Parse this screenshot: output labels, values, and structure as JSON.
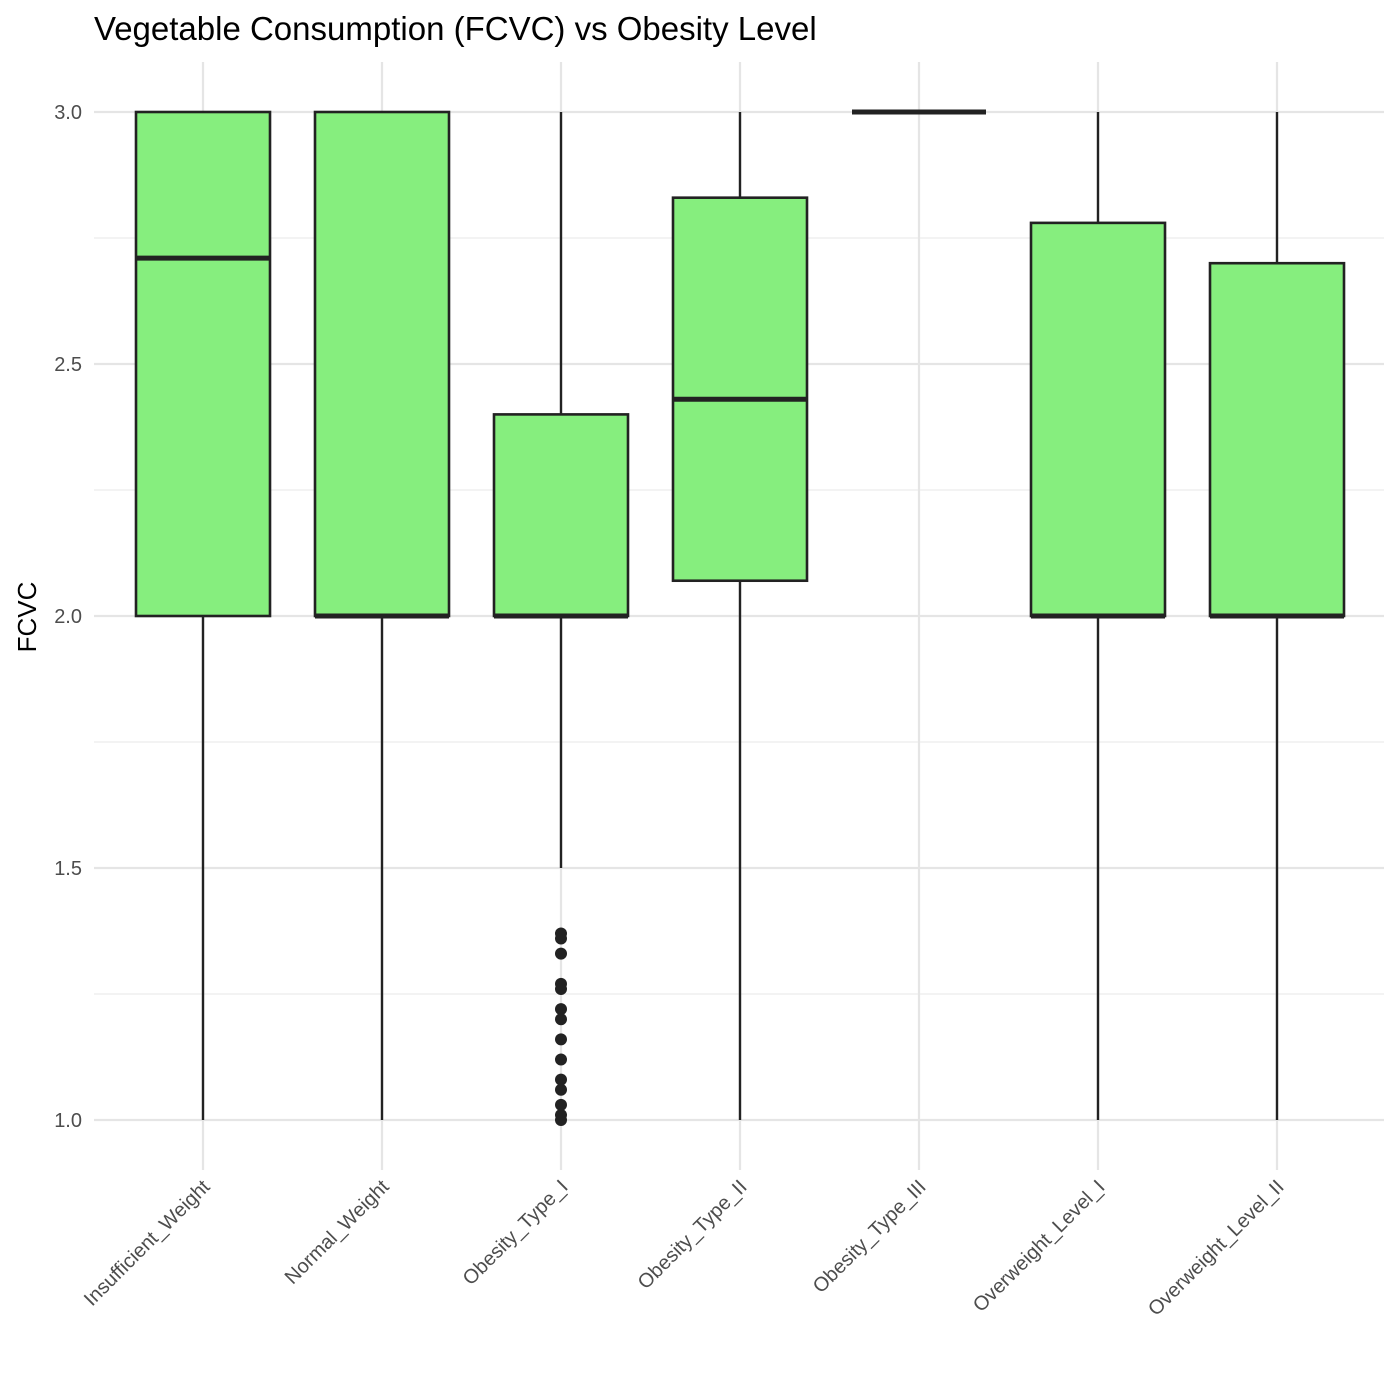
{
  "chart_data": {
    "type": "boxplot",
    "title": "Vegetable Consumption (FCVC) vs Obesity Level",
    "xlabel": "",
    "ylabel": "FCVC",
    "ylim": [
      0.9,
      3.1
    ],
    "yticks": [
      "1.0",
      "1.5",
      "2.0",
      "2.5",
      "3.0"
    ],
    "grid": true,
    "colors": {
      "box_fill": "#86ee7e",
      "box_stroke": "#222222"
    },
    "categories": [
      "Insufficient_Weight",
      "Normal_Weight",
      "Obesity_Type_I",
      "Obesity_Type_II",
      "Obesity_Type_III",
      "Overweight_Level_I",
      "Overweight_Level_II"
    ],
    "boxes": [
      {
        "category": "Insufficient_Weight",
        "min": 1.0,
        "q1": 2.0,
        "median": 2.71,
        "q3": 3.0,
        "max": 3.0,
        "outliers": []
      },
      {
        "category": "Normal_Weight",
        "min": 1.0,
        "q1": 2.0,
        "median": 2.0,
        "q3": 3.0,
        "max": 3.0,
        "outliers": []
      },
      {
        "category": "Obesity_Type_I",
        "min": 1.5,
        "q1": 2.0,
        "median": 2.0,
        "q3": 2.4,
        "max": 3.0,
        "outliers": [
          1.37,
          1.36,
          1.33,
          1.27,
          1.26,
          1.22,
          1.2,
          1.16,
          1.12,
          1.08,
          1.06,
          1.03,
          1.01,
          1.0
        ]
      },
      {
        "category": "Obesity_Type_II",
        "min": 1.0,
        "q1": 2.07,
        "median": 2.43,
        "q3": 2.83,
        "max": 3.0,
        "outliers": []
      },
      {
        "category": "Obesity_Type_III",
        "min": 3.0,
        "q1": 3.0,
        "median": 3.0,
        "q3": 3.0,
        "max": 3.0,
        "outliers": []
      },
      {
        "category": "Overweight_Level_I",
        "min": 1.0,
        "q1": 2.0,
        "median": 2.0,
        "q3": 2.78,
        "max": 3.0,
        "outliers": []
      },
      {
        "category": "Overweight_Level_II",
        "min": 1.0,
        "q1": 2.0,
        "median": 2.0,
        "q3": 2.7,
        "max": 3.0,
        "outliers": []
      }
    ]
  }
}
